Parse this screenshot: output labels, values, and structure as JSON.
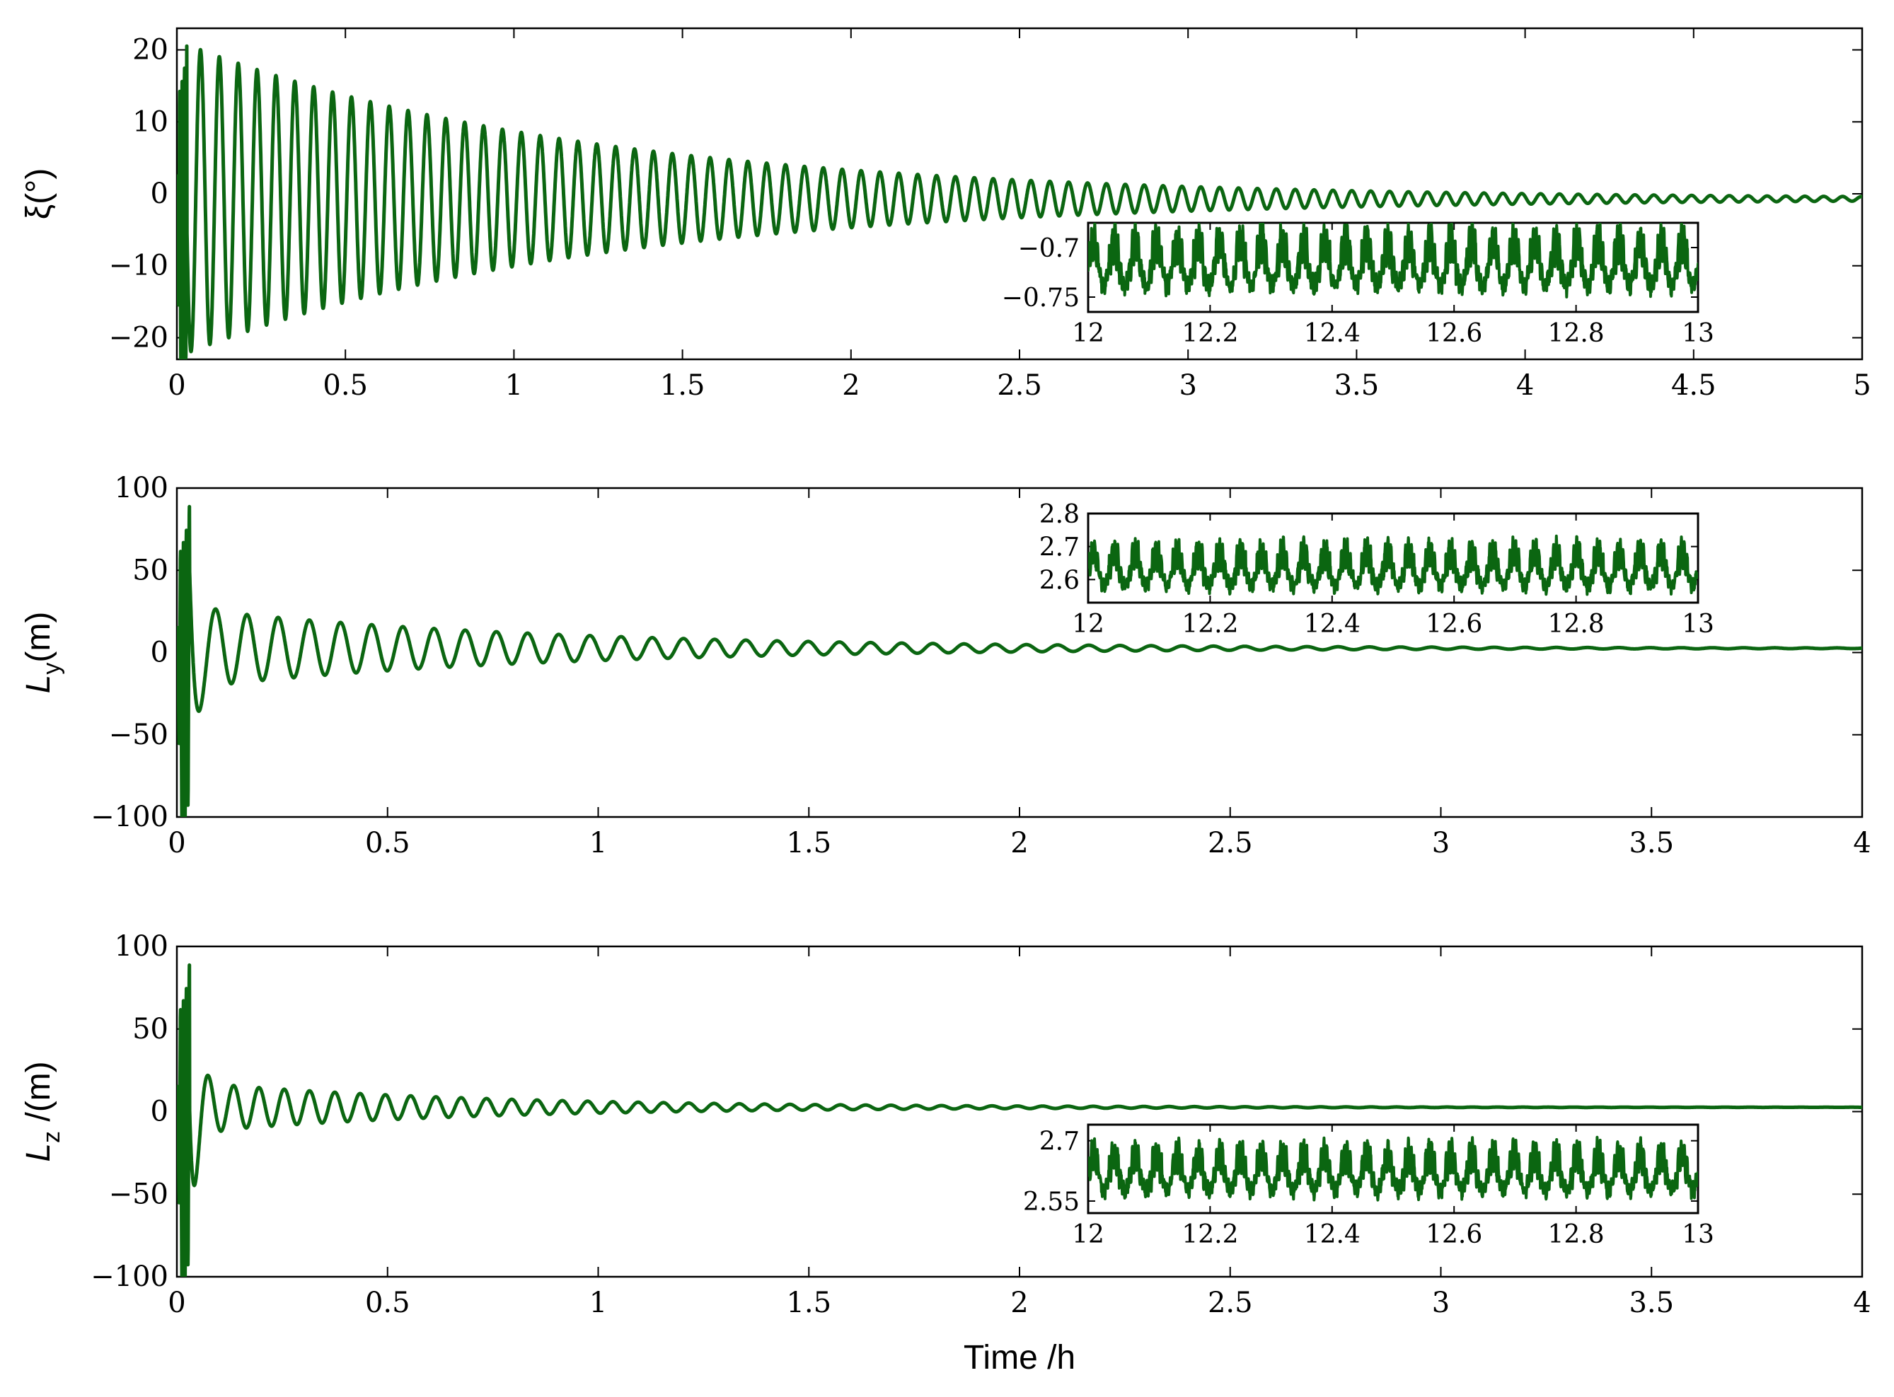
{
  "accent_color": "#0b6611",
  "xlabel": "Time /h",
  "chart_data": [
    {
      "type": "line",
      "name": "xi-panel",
      "ylabel": "ξ(°)",
      "ylabel_main": "ξ(°)",
      "ylabel_sub": "",
      "xlim": [
        0,
        5
      ],
      "ylim": [
        -23,
        23
      ],
      "xticks": [
        "0",
        "0.5",
        "1",
        "1.5",
        "2",
        "2.5",
        "3",
        "3.5",
        "4",
        "4.5",
        "5"
      ],
      "yticks": [
        "20",
        "10",
        "0",
        "−10",
        "−20"
      ],
      "ytick_values": [
        20,
        10,
        0,
        -10,
        -20
      ],
      "signal": {
        "offset": -0.7,
        "initial_amplitude": 22,
        "decay_rate": 0.85,
        "oscillation_period_h": 0.056
      },
      "series": [
        {
          "x": [
            0,
            0.05,
            0.1,
            0.2,
            0.3,
            0.5,
            0.75,
            1.0,
            1.5,
            2.0,
            2.5,
            3.0,
            3.5,
            4.0,
            4.5,
            5.0
          ],
          "y_envelope": [
            0,
            23,
            16,
            13,
            11.5,
            9.5,
            7.5,
            6,
            4,
            2.5,
            1.5,
            0.9,
            0.5,
            0.3,
            0.15,
            0.05
          ]
        }
      ],
      "inset": {
        "xlim": [
          12,
          13
        ],
        "ylim": [
          -0.765,
          -0.675
        ],
        "xticks": [
          "12",
          "12.2",
          "12.4",
          "12.6",
          "12.8",
          "13"
        ],
        "yticks": [
          "−0.7",
          "−0.75"
        ],
        "ytick_values": [
          -0.7,
          -0.75
        ],
        "signal": {
          "mean": -0.717,
          "amplitude": 0.04
        }
      }
    },
    {
      "type": "line",
      "name": "ly-panel",
      "ylabel": "Ly(m)",
      "ylabel_main": "L",
      "ylabel_sub": "y",
      "ylabel_tail": "(m)",
      "xlim": [
        0,
        4
      ],
      "ylim": [
        -100,
        100
      ],
      "xticks": [
        "0",
        "0.5",
        "1",
        "1.5",
        "2",
        "2.5",
        "3",
        "3.5",
        "4"
      ],
      "yticks": [
        "100",
        "50",
        "0",
        "−50",
        "−100"
      ],
      "ytick_values": [
        100,
        50,
        0,
        -50,
        -100
      ],
      "signal": {
        "offset": 2.6,
        "initial_amplitude": 25,
        "decay_rate": 1.2,
        "oscillation_period_h": 0.074,
        "transient_peak": 87,
        "transient_trough": -88
      },
      "series": [
        {
          "x": [
            0,
            0.03,
            0.05,
            0.1,
            0.2,
            0.5,
            1.0,
            1.5,
            2.0,
            2.5,
            3.0,
            3.5,
            4.0
          ],
          "y_envelope": [
            0,
            87,
            60,
            22,
            17,
            13,
            8,
            5,
            3.5,
            2,
            1.2,
            0.8,
            0.5
          ]
        }
      ],
      "inset": {
        "xlim": [
          12,
          13
        ],
        "ylim": [
          2.53,
          2.8
        ],
        "xticks": [
          "12",
          "12.2",
          "12.4",
          "12.6",
          "12.8",
          "13"
        ],
        "yticks": [
          "2.8",
          "2.7",
          "2.6"
        ],
        "ytick_values": [
          2.8,
          2.7,
          2.6
        ],
        "signal": {
          "mean": 2.63,
          "amplitude": 0.09
        }
      }
    },
    {
      "type": "line",
      "name": "lz-panel",
      "ylabel": "Lz /(m)",
      "ylabel_main": "L",
      "ylabel_sub": "z",
      "ylabel_tail": " /(m)",
      "xlim": [
        0,
        4
      ],
      "ylim": [
        -100,
        100
      ],
      "xticks": [
        "0",
        "0.5",
        "1",
        "1.5",
        "2",
        "2.5",
        "3",
        "3.5",
        "4"
      ],
      "yticks": [
        "100",
        "50",
        "0",
        "−50",
        "−100"
      ],
      "ytick_values": [
        100,
        50,
        0,
        -50,
        -100
      ],
      "signal": {
        "offset": 2.6,
        "initial_amplitude": 16,
        "decay_rate": 1.5,
        "oscillation_period_h": 0.06,
        "transient_peak": 87,
        "transient_trough": -87
      },
      "series": [
        {
          "x": [
            0,
            0.03,
            0.05,
            0.1,
            0.2,
            0.5,
            1.0,
            1.5,
            2.0,
            2.5,
            3.0,
            3.5,
            4.0
          ],
          "y_envelope": [
            0,
            87,
            50,
            18,
            12,
            9,
            5,
            3,
            2,
            1,
            0.6,
            0.4,
            0.3
          ]
        }
      ],
      "inset": {
        "xlim": [
          12,
          13
        ],
        "ylim": [
          2.52,
          2.74
        ],
        "xticks": [
          "12",
          "12.2",
          "12.4",
          "12.6",
          "12.8",
          "13"
        ],
        "yticks": [
          "2.7",
          "2.55"
        ],
        "ytick_values": [
          2.7,
          2.55
        ],
        "signal": {
          "mean": 2.62,
          "amplitude": 0.08
        }
      }
    }
  ]
}
